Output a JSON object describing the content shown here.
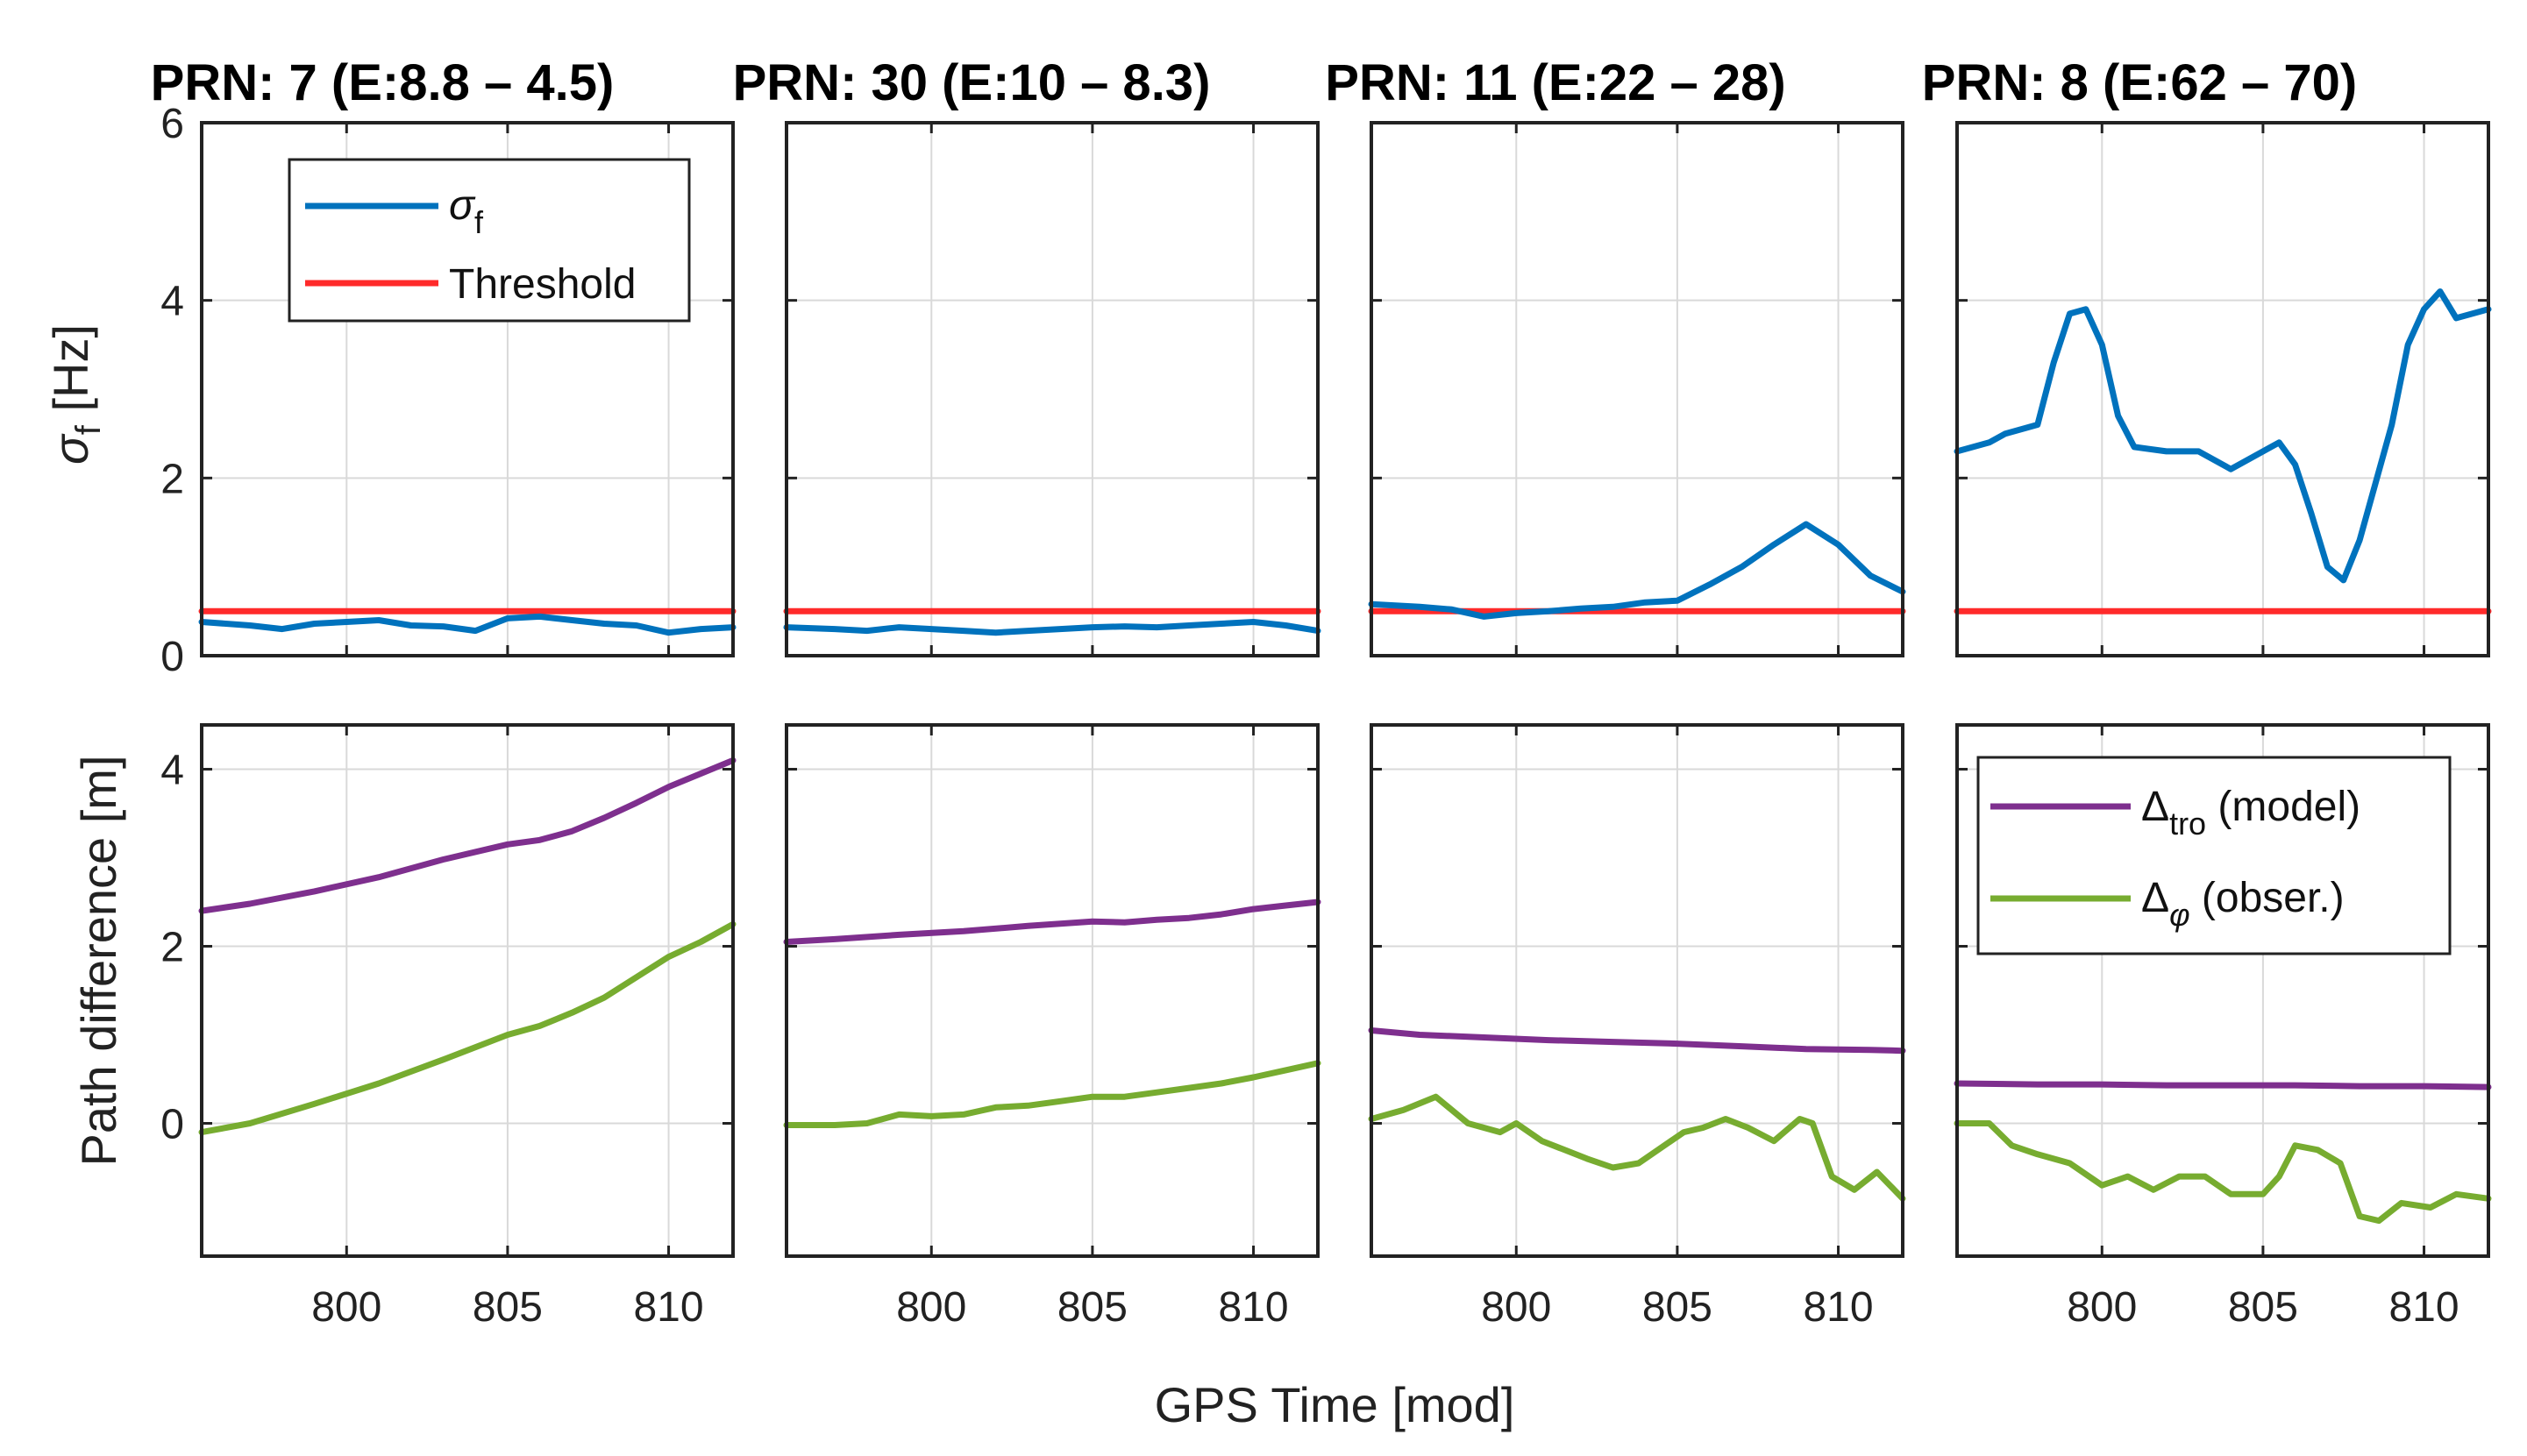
{
  "figure": {
    "xlabel": "GPS Time [mod]",
    "colors": {
      "sigma": "#0072BD",
      "threshold": "#FF2A2A",
      "model": "#7E2F8E",
      "observed": "#77AC30"
    }
  },
  "chart_data": {
    "type": "line",
    "xlim": [
      795.5,
      812
    ],
    "xticks": [
      800,
      805,
      810
    ],
    "top_row": {
      "ylabel_symbol": "σ",
      "ylabel_sub": "f",
      "ylabel_unit": " [Hz]",
      "ylim": [
        0,
        6
      ],
      "yticks": [
        0,
        2,
        4,
        6
      ],
      "threshold": 0.5
    },
    "bottom_row": {
      "ylabel": "Path difference [m]",
      "ylim": [
        -1.5,
        4.5
      ],
      "yticks": [
        0,
        2,
        4
      ]
    },
    "legend_top": {
      "sigma_symbol": "σ",
      "sigma_sub": "f",
      "threshold_label": "Threshold"
    },
    "legend_bottom": {
      "model_symbol": "Δ",
      "model_sub": "tro",
      "model_suffix": " (model)",
      "obs_symbol": "Δ",
      "obs_sub": "φ",
      "obs_suffix": " (obser.)"
    },
    "panels": [
      {
        "title": "PRN: 7 (E:8.8 – 4.5)",
        "sigma": [
          [
            795.5,
            0.38
          ],
          [
            797,
            0.34
          ],
          [
            798,
            0.3
          ],
          [
            799,
            0.36
          ],
          [
            800,
            0.38
          ],
          [
            801,
            0.4
          ],
          [
            802,
            0.34
          ],
          [
            803,
            0.33
          ],
          [
            804,
            0.28
          ],
          [
            805,
            0.42
          ],
          [
            806,
            0.44
          ],
          [
            807,
            0.4
          ],
          [
            808,
            0.36
          ],
          [
            809,
            0.34
          ],
          [
            810,
            0.26
          ],
          [
            811,
            0.3
          ],
          [
            812,
            0.32
          ]
        ],
        "model": [
          [
            795.5,
            2.4
          ],
          [
            797,
            2.48
          ],
          [
            799,
            2.62
          ],
          [
            801,
            2.78
          ],
          [
            803,
            2.98
          ],
          [
            805,
            3.15
          ],
          [
            806,
            3.2
          ],
          [
            807,
            3.3
          ],
          [
            808,
            3.45
          ],
          [
            809,
            3.62
          ],
          [
            810,
            3.8
          ],
          [
            811,
            3.95
          ],
          [
            812,
            4.1
          ]
        ],
        "observed": [
          [
            795.5,
            -0.1
          ],
          [
            797,
            0.0
          ],
          [
            799,
            0.22
          ],
          [
            801,
            0.45
          ],
          [
            803,
            0.72
          ],
          [
            805,
            1.0
          ],
          [
            806,
            1.1
          ],
          [
            807,
            1.25
          ],
          [
            808,
            1.42
          ],
          [
            809,
            1.65
          ],
          [
            810,
            1.88
          ],
          [
            811,
            2.05
          ],
          [
            812,
            2.25
          ]
        ]
      },
      {
        "title": "PRN: 30 (E:10 – 8.3)",
        "sigma": [
          [
            795.5,
            0.32
          ],
          [
            797,
            0.3
          ],
          [
            798,
            0.28
          ],
          [
            799,
            0.32
          ],
          [
            800,
            0.3
          ],
          [
            801,
            0.28
          ],
          [
            802,
            0.26
          ],
          [
            803,
            0.28
          ],
          [
            804,
            0.3
          ],
          [
            805,
            0.32
          ],
          [
            806,
            0.33
          ],
          [
            807,
            0.32
          ],
          [
            808,
            0.34
          ],
          [
            809,
            0.36
          ],
          [
            810,
            0.38
          ],
          [
            811,
            0.34
          ],
          [
            812,
            0.28
          ]
        ],
        "model": [
          [
            795.5,
            2.05
          ],
          [
            797,
            2.08
          ],
          [
            799,
            2.13
          ],
          [
            801,
            2.17
          ],
          [
            803,
            2.23
          ],
          [
            805,
            2.28
          ],
          [
            806,
            2.27
          ],
          [
            807,
            2.3
          ],
          [
            808,
            2.32
          ],
          [
            809,
            2.36
          ],
          [
            810,
            2.42
          ],
          [
            811,
            2.46
          ],
          [
            812,
            2.5
          ]
        ],
        "observed": [
          [
            795.5,
            -0.02
          ],
          [
            797,
            -0.02
          ],
          [
            798,
            0.0
          ],
          [
            799,
            0.1
          ],
          [
            800,
            0.08
          ],
          [
            801,
            0.1
          ],
          [
            802,
            0.18
          ],
          [
            803,
            0.2
          ],
          [
            804,
            0.25
          ],
          [
            805,
            0.3
          ],
          [
            806,
            0.3
          ],
          [
            807,
            0.35
          ],
          [
            808,
            0.4
          ],
          [
            809,
            0.45
          ],
          [
            810,
            0.52
          ],
          [
            811,
            0.6
          ],
          [
            812,
            0.68
          ]
        ]
      },
      {
        "title": "PRN: 11 (E:22 – 28)",
        "sigma": [
          [
            795.5,
            0.58
          ],
          [
            797,
            0.55
          ],
          [
            798,
            0.52
          ],
          [
            799,
            0.44
          ],
          [
            800,
            0.48
          ],
          [
            801,
            0.5
          ],
          [
            802,
            0.53
          ],
          [
            803,
            0.55
          ],
          [
            804,
            0.6
          ],
          [
            805,
            0.62
          ],
          [
            806,
            0.8
          ],
          [
            807,
            1.0
          ],
          [
            808,
            1.25
          ],
          [
            809,
            1.48
          ],
          [
            810,
            1.25
          ],
          [
            811,
            0.9
          ],
          [
            812,
            0.72
          ]
        ],
        "model": [
          [
            795.5,
            1.05
          ],
          [
            797,
            1.0
          ],
          [
            799,
            0.97
          ],
          [
            801,
            0.94
          ],
          [
            803,
            0.92
          ],
          [
            805,
            0.9
          ],
          [
            807,
            0.87
          ],
          [
            809,
            0.84
          ],
          [
            811,
            0.83
          ],
          [
            812,
            0.82
          ]
        ],
        "observed": [
          [
            795.5,
            0.05
          ],
          [
            796.5,
            0.15
          ],
          [
            797.5,
            0.3
          ],
          [
            798.5,
            0.0
          ],
          [
            799.5,
            -0.1
          ],
          [
            800,
            0.0
          ],
          [
            800.8,
            -0.2
          ],
          [
            801.5,
            -0.3
          ],
          [
            802.2,
            -0.4
          ],
          [
            803,
            -0.5
          ],
          [
            803.8,
            -0.45
          ],
          [
            804.6,
            -0.25
          ],
          [
            805.2,
            -0.1
          ],
          [
            805.8,
            -0.05
          ],
          [
            806.5,
            0.05
          ],
          [
            807.2,
            -0.05
          ],
          [
            808,
            -0.2
          ],
          [
            808.8,
            0.05
          ],
          [
            809.2,
            0.0
          ],
          [
            809.8,
            -0.6
          ],
          [
            810.5,
            -0.75
          ],
          [
            811.2,
            -0.55
          ],
          [
            812,
            -0.85
          ]
        ]
      },
      {
        "title": "PRN: 8 (E:62 – 70)",
        "sigma": [
          [
            795.5,
            2.3
          ],
          [
            796.5,
            2.4
          ],
          [
            797,
            2.5
          ],
          [
            798,
            2.6
          ],
          [
            798.5,
            3.3
          ],
          [
            799,
            3.85
          ],
          [
            799.5,
            3.9
          ],
          [
            800,
            3.5
          ],
          [
            800.5,
            2.7
          ],
          [
            801,
            2.35
          ],
          [
            802,
            2.3
          ],
          [
            803,
            2.3
          ],
          [
            804,
            2.1
          ],
          [
            805,
            2.3
          ],
          [
            805.5,
            2.4
          ],
          [
            806,
            2.15
          ],
          [
            806.5,
            1.6
          ],
          [
            807,
            1.0
          ],
          [
            807.5,
            0.85
          ],
          [
            808,
            1.3
          ],
          [
            809,
            2.6
          ],
          [
            809.5,
            3.5
          ],
          [
            810,
            3.9
          ],
          [
            810.5,
            4.1
          ],
          [
            811,
            3.8
          ],
          [
            812,
            3.9
          ]
        ],
        "model": [
          [
            795.5,
            0.45
          ],
          [
            798,
            0.44
          ],
          [
            800,
            0.44
          ],
          [
            802,
            0.43
          ],
          [
            804,
            0.43
          ],
          [
            806,
            0.43
          ],
          [
            808,
            0.42
          ],
          [
            810,
            0.42
          ],
          [
            812,
            0.41
          ]
        ],
        "observed": [
          [
            795.5,
            0.0
          ],
          [
            796.5,
            0.0
          ],
          [
            797.2,
            -0.25
          ],
          [
            798,
            -0.35
          ],
          [
            799,
            -0.45
          ],
          [
            800,
            -0.7
          ],
          [
            800.8,
            -0.6
          ],
          [
            801.6,
            -0.75
          ],
          [
            802.4,
            -0.6
          ],
          [
            803.2,
            -0.6
          ],
          [
            804,
            -0.8
          ],
          [
            805,
            -0.8
          ],
          [
            805.5,
            -0.6
          ],
          [
            806,
            -0.25
          ],
          [
            806.7,
            -0.3
          ],
          [
            807.4,
            -0.45
          ],
          [
            808,
            -1.05
          ],
          [
            808.6,
            -1.1
          ],
          [
            809.3,
            -0.9
          ],
          [
            810.2,
            -0.95
          ],
          [
            811,
            -0.8
          ],
          [
            812,
            -0.85
          ]
        ]
      }
    ]
  }
}
